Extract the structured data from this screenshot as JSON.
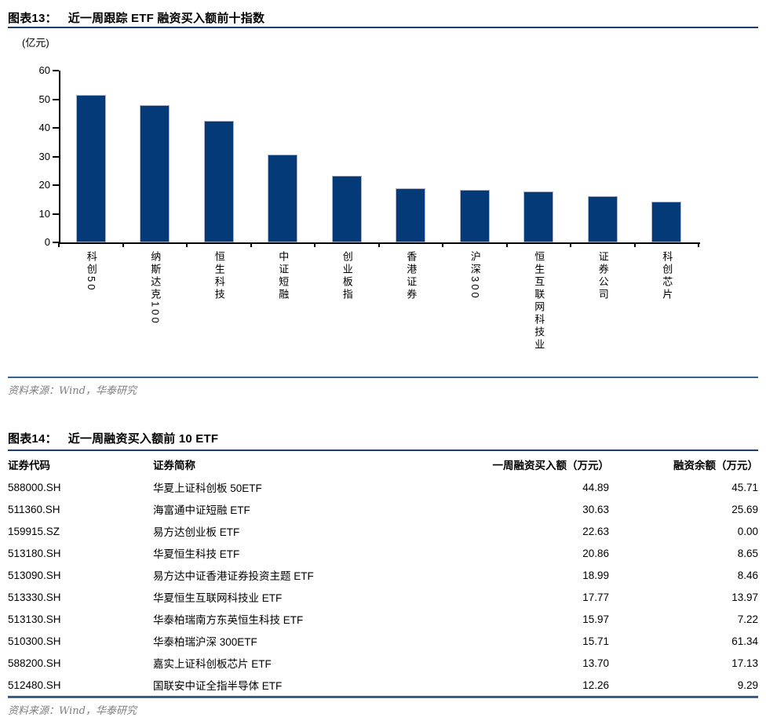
{
  "page": {
    "fig13": {
      "label": "图表13：",
      "title": "近一周跟踪 ETF 融资买入额前十指数",
      "source": "资料来源：Wind，华泰研究"
    },
    "fig14": {
      "label": "图表14：",
      "title": "近一周融资买入额前 10 ETF",
      "source": "资料来源：Wind，华泰研究"
    }
  },
  "chart_data": {
    "type": "bar",
    "title": "近一周跟踪 ETF 融资买入额前十指数",
    "unit_label": "(亿元)",
    "categories": [
      "科创50",
      "纳斯达克100",
      "恒生科技",
      "中证短融",
      "创业板指",
      "香港证券",
      "沪深300",
      "恒生互联网科技业",
      "证券公司",
      "科创芯片"
    ],
    "values": [
      51.4,
      48.0,
      42.5,
      30.6,
      23.3,
      19.0,
      18.3,
      17.8,
      16.2,
      14.2
    ],
    "xlabel": "",
    "ylabel": "(亿元)",
    "ylim": [
      0,
      60
    ],
    "yticks": [
      0,
      10,
      20,
      30,
      40,
      50,
      60
    ],
    "grid": false,
    "legend": false,
    "bar_color": "#043a78"
  },
  "table": {
    "columns": [
      "证券代码",
      "证券简称",
      "一周融资买入额（万元）",
      "融资余额（万元）"
    ],
    "rows": [
      [
        "588000.SH",
        "华夏上证科创板 50ETF",
        "44.89",
        "45.71"
      ],
      [
        "511360.SH",
        "海富通中证短融 ETF",
        "30.63",
        "25.69"
      ],
      [
        "159915.SZ",
        "易方达创业板 ETF",
        "22.63",
        "0.00"
      ],
      [
        "513180.SH",
        "华夏恒生科技 ETF",
        "20.86",
        "8.65"
      ],
      [
        "513090.SH",
        "易方达中证香港证券投资主题 ETF",
        "18.99",
        "8.46"
      ],
      [
        "513330.SH",
        "华夏恒生互联网科技业 ETF",
        "17.77",
        "13.97"
      ],
      [
        "513130.SH",
        "华泰柏瑞南方东英恒生科技 ETF",
        "15.97",
        "7.22"
      ],
      [
        "510300.SH",
        "华泰柏瑞沪深 300ETF",
        "15.71",
        "61.34"
      ],
      [
        "588200.SH",
        "嘉实上证科创板芯片 ETF",
        "13.70",
        "17.13"
      ],
      [
        "512480.SH",
        "国联安中证全指半导体 ETF",
        "12.26",
        "9.29"
      ]
    ]
  },
  "colors": {
    "bar": "#043a78",
    "title_rule": "#1f3c6e",
    "bottom_rule": "#36608f",
    "source_text": "#7f7f7f",
    "axis": "#000000"
  }
}
